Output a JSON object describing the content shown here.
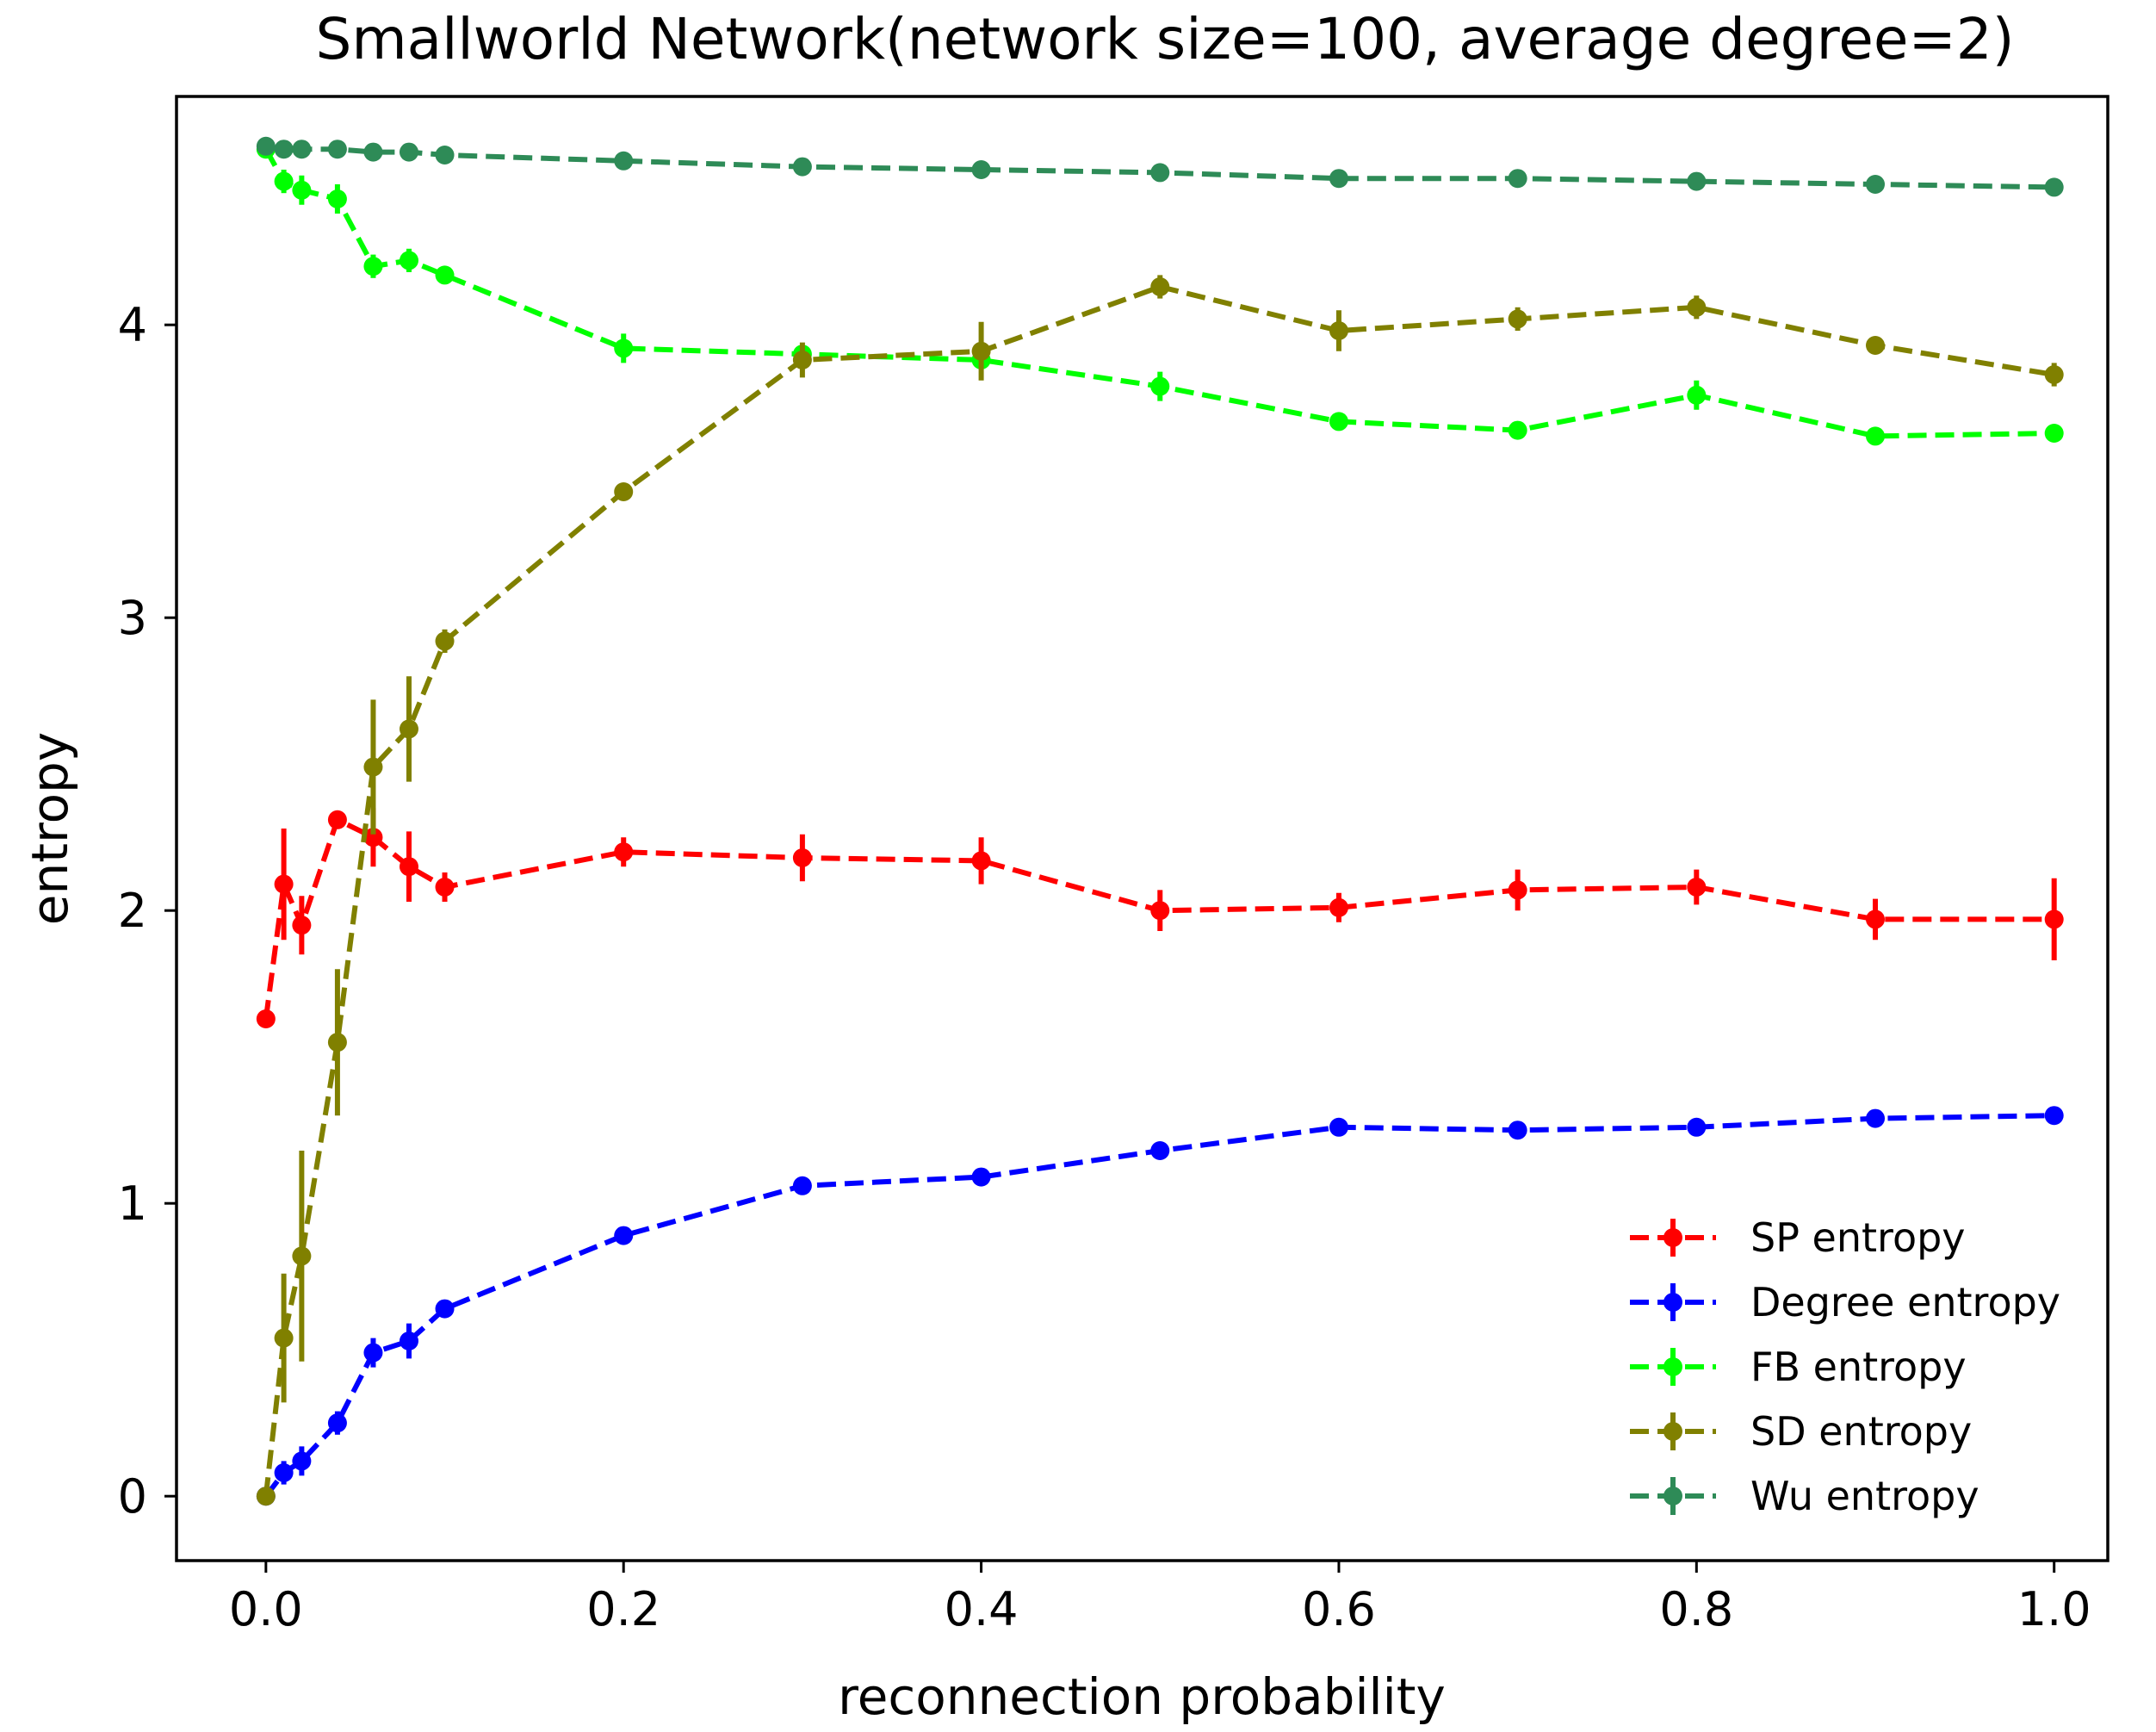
{
  "chart_data": {
    "type": "line",
    "title": "Smallworld Network(network size=100, average degree=2)",
    "xlabel": "reconnection probability",
    "ylabel": "entropy",
    "xlim": [
      -0.05,
      1.03
    ],
    "ylim": [
      -0.22,
      4.78
    ],
    "xticks": [
      0.0,
      0.2,
      0.4,
      0.6,
      0.8,
      1.0
    ],
    "xtick_labels": [
      "0.0",
      "0.2",
      "0.4",
      "0.6",
      "0.8",
      "1.0"
    ],
    "yticks": [
      0,
      1,
      2,
      3,
      4
    ],
    "ytick_labels": [
      "0",
      "1",
      "2",
      "3",
      "4"
    ],
    "legend_position": "bottom-right",
    "x": [
      0.0,
      0.01,
      0.02,
      0.04,
      0.06,
      0.08,
      0.1,
      0.2,
      0.3,
      0.4,
      0.5,
      0.6,
      0.7,
      0.8,
      0.9,
      1.0
    ],
    "series": [
      {
        "name": "SP entropy",
        "color": "#ff0000",
        "values": [
          1.63,
          2.09,
          1.95,
          2.31,
          2.25,
          2.15,
          2.08,
          2.2,
          2.18,
          2.17,
          2.0,
          2.01,
          2.07,
          2.08,
          1.97,
          1.97
        ],
        "errors": [
          0.0,
          0.19,
          0.1,
          0.03,
          0.1,
          0.12,
          0.05,
          0.05,
          0.08,
          0.08,
          0.07,
          0.05,
          0.07,
          0.06,
          0.07,
          0.14
        ]
      },
      {
        "name": "Degree entropy",
        "color": "#0000ff",
        "values": [
          0.0,
          0.08,
          0.12,
          0.25,
          0.49,
          0.53,
          0.64,
          0.89,
          1.06,
          1.09,
          1.18,
          1.26,
          1.25,
          1.26,
          1.29,
          1.3
        ],
        "errors": [
          0.0,
          0.04,
          0.05,
          0.04,
          0.05,
          0.06,
          0.03,
          0.03,
          0.03,
          0.02,
          0.02,
          0.02,
          0.02,
          0.02,
          0.02,
          0.02
        ]
      },
      {
        "name": "FB entropy",
        "color": "#00ff00",
        "values": [
          4.6,
          4.49,
          4.46,
          4.43,
          4.2,
          4.22,
          4.17,
          3.92,
          3.9,
          3.88,
          3.79,
          3.67,
          3.64,
          3.76,
          3.62,
          3.63
        ],
        "errors": [
          0.0,
          0.04,
          0.05,
          0.05,
          0.04,
          0.04,
          0.03,
          0.05,
          0.03,
          0.03,
          0.05,
          0.03,
          0.02,
          0.05,
          0.03,
          0.02
        ]
      },
      {
        "name": "SD entropy",
        "color": "#808000",
        "values": [
          0.0,
          0.54,
          0.82,
          1.55,
          2.49,
          2.62,
          2.92,
          3.43,
          3.88,
          3.91,
          4.13,
          3.98,
          4.02,
          4.06,
          3.93,
          3.83
        ],
        "errors": [
          0.0,
          0.22,
          0.36,
          0.25,
          0.23,
          0.18,
          0.04,
          0.03,
          0.06,
          0.1,
          0.04,
          0.07,
          0.04,
          0.04,
          0.03,
          0.04
        ]
      },
      {
        "name": "Wu entropy",
        "color": "#2e8b57",
        "values": [
          4.61,
          4.6,
          4.6,
          4.6,
          4.59,
          4.59,
          4.58,
          4.56,
          4.54,
          4.53,
          4.52,
          4.5,
          4.5,
          4.49,
          4.48,
          4.47
        ],
        "errors": [
          0.0,
          0.01,
          0.01,
          0.01,
          0.01,
          0.01,
          0.01,
          0.01,
          0.01,
          0.01,
          0.01,
          0.01,
          0.01,
          0.01,
          0.01,
          0.01
        ]
      }
    ]
  }
}
